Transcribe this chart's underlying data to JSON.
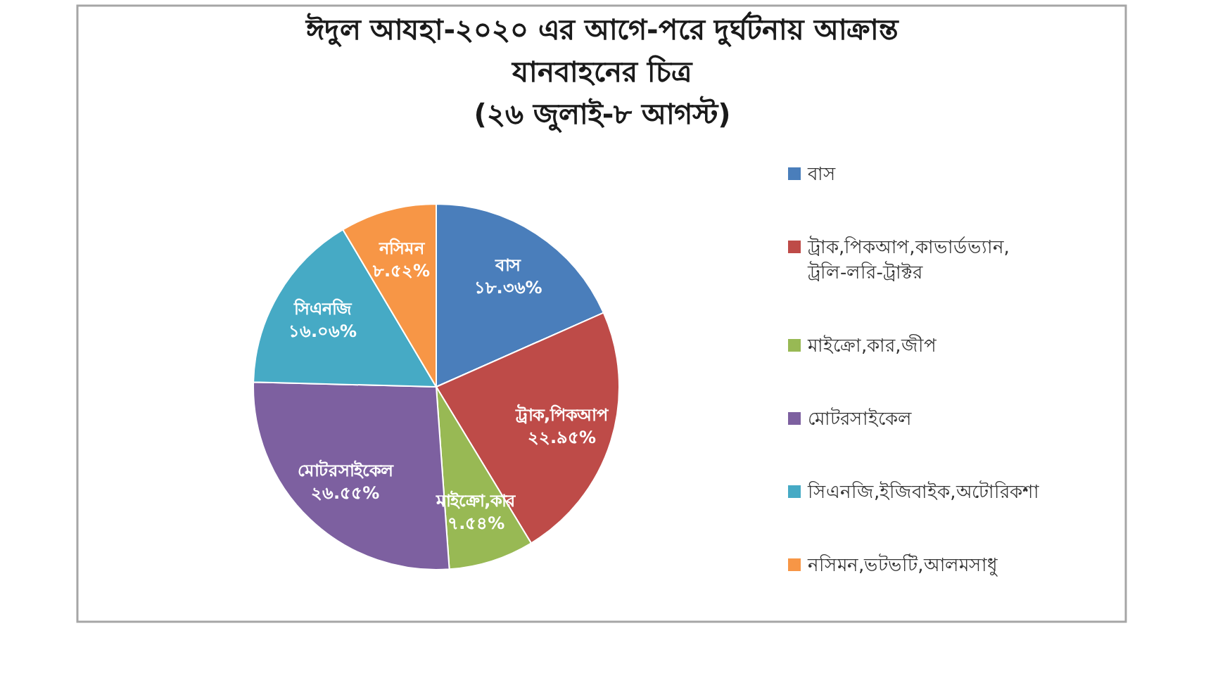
{
  "chart_data": {
    "type": "pie",
    "title": "ঈদুল আযহা-২০২০ এর আগে-পরে দুর্ঘটনায় আক্রান্ত যানবাহনের চিত্র (২৬ জুলাই-৮ আগস্ট)",
    "categories": [
      "বাস",
      "ট্রাক,পিকআপ,কাভার্ডভ্যান,ট্রলি-লরি-ট্রাক্টর",
      "মাইক্রো,কার,জীপ",
      "মোটরসাইকেল",
      "সিএনজি,ইজিবাইক,অটোরিকশা",
      "নসিমন,ভটভটি,আলমসাধু"
    ],
    "values": [
      18.36,
      22.95,
      7.54,
      26.55,
      16.06,
      8.52
    ],
    "colors": [
      "#4a7ebb",
      "#be4b48",
      "#98b954",
      "#7d60a0",
      "#46aac5",
      "#f79646"
    ],
    "value_labels": [
      "বাস\n১৮.৩৬%",
      "ট্রাক,পিকআপ\n২২.৯৫%",
      "মাইক্রো,কার\n৭.৫৪%",
      "মোটরসাইকেল\n২৬.৫৫%",
      "সিএনজি\n১৬.০৬%",
      "নসিমন\n৮.৫২%"
    ],
    "legend": "right"
  }
}
